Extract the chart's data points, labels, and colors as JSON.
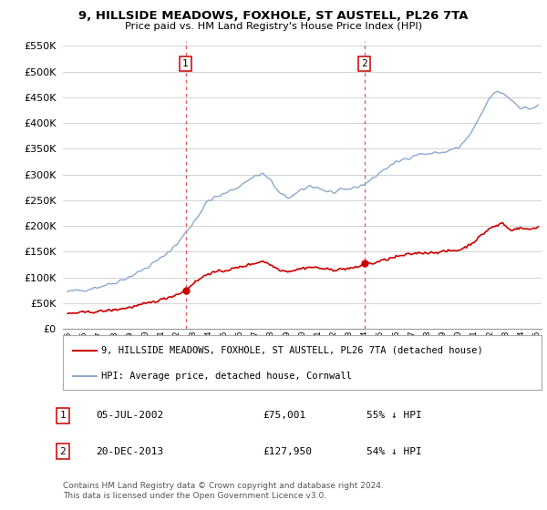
{
  "title": "9, HILLSIDE MEADOWS, FOXHOLE, ST AUSTELL, PL26 7TA",
  "subtitle": "Price paid vs. HM Land Registry's House Price Index (HPI)",
  "legend_label_red": "9, HILLSIDE MEADOWS, FOXHOLE, ST AUSTELL, PL26 7TA (detached house)",
  "legend_label_blue": "HPI: Average price, detached house, Cornwall",
  "footnote": "Contains HM Land Registry data © Crown copyright and database right 2024.\nThis data is licensed under the Open Government Licence v3.0.",
  "table_rows": [
    {
      "num": "1",
      "date": "05-JUL-2002",
      "price": "£75,001",
      "hpi": "55% ↓ HPI"
    },
    {
      "num": "2",
      "date": "20-DEC-2013",
      "price": "£127,950",
      "hpi": "54% ↓ HPI"
    }
  ],
  "sale1_x": 2002.54,
  "sale1_y": 75001,
  "sale2_x": 2013.97,
  "sale2_y": 127950,
  "ylim": [
    0,
    560000
  ],
  "yticks": [
    0,
    50000,
    100000,
    150000,
    200000,
    250000,
    300000,
    350000,
    400000,
    450000,
    500000,
    550000
  ],
  "xmin": 1994.7,
  "xmax": 2025.3,
  "red_color": "#cc0000",
  "blue_color": "#88aacc",
  "dashed_color": "#dd4444",
  "background_color": "#ffffff",
  "grid_color": "#cccccc"
}
